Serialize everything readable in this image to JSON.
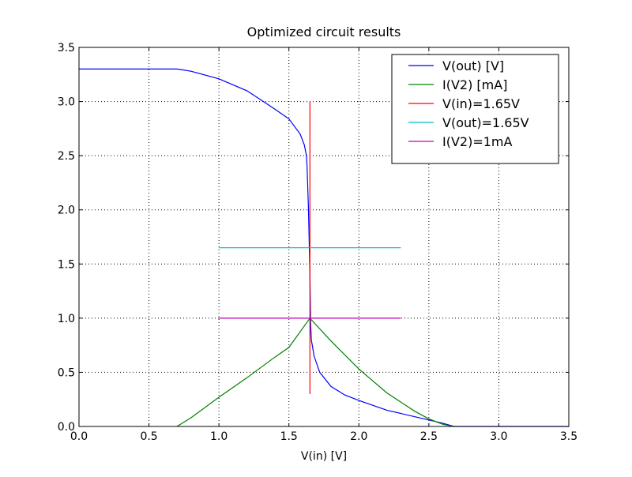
{
  "chart_data": {
    "type": "line",
    "title": "Optimized circuit results",
    "xlabel": "V(in) [V]",
    "ylabel": "",
    "xlim": [
      0,
      3.5
    ],
    "ylim": [
      0,
      3.5
    ],
    "xticks": [
      "0.0",
      "0.5",
      "1.0",
      "1.5",
      "2.0",
      "2.5",
      "3.0",
      "3.5"
    ],
    "yticks": [
      "0.0",
      "0.5",
      "1.0",
      "1.5",
      "2.0",
      "2.5",
      "3.0",
      "3.5"
    ],
    "grid": true,
    "legend_position": "top-right",
    "series": [
      {
        "name": "V(out) [V]",
        "color": "#0000ff",
        "x": [
          0,
          0.7,
          0.8,
          1.0,
          1.2,
          1.4,
          1.5,
          1.58,
          1.61,
          1.625,
          1.63,
          1.64,
          1.65,
          1.655,
          1.66,
          1.68,
          1.72,
          1.8,
          1.9,
          2.0,
          2.2,
          2.4,
          2.5,
          2.6,
          2.68,
          3.5
        ],
        "y": [
          3.3,
          3.3,
          3.28,
          3.21,
          3.1,
          2.93,
          2.84,
          2.7,
          2.6,
          2.5,
          2.4,
          2.0,
          1.4,
          0.95,
          0.8,
          0.65,
          0.5,
          0.37,
          0.29,
          0.24,
          0.15,
          0.09,
          0.06,
          0.03,
          0.0,
          0.0
        ]
      },
      {
        "name": "I(V2) [mA]",
        "color": "#008000",
        "x": [
          0.7,
          0.8,
          1.0,
          1.2,
          1.4,
          1.5,
          1.65,
          1.8,
          2.0,
          2.2,
          2.4,
          2.5,
          2.6,
          2.68
        ],
        "y": [
          0.0,
          0.08,
          0.27,
          0.45,
          0.64,
          0.73,
          1.0,
          0.79,
          0.53,
          0.31,
          0.14,
          0.07,
          0.02,
          0.0
        ]
      },
      {
        "name": "V(in)=1.65V",
        "color": "#ff0000",
        "x": [
          1.65,
          1.65
        ],
        "y": [
          0.3,
          3.0
        ]
      },
      {
        "name": "V(out)=1.65V",
        "color": "#00bfbf",
        "x": [
          1.0,
          2.3
        ],
        "y": [
          1.65,
          1.65
        ]
      },
      {
        "name": "I(V2)=1mA",
        "color": "#bf00bf",
        "x": [
          1.0,
          2.3
        ],
        "y": [
          1.0,
          1.0
        ]
      }
    ]
  }
}
